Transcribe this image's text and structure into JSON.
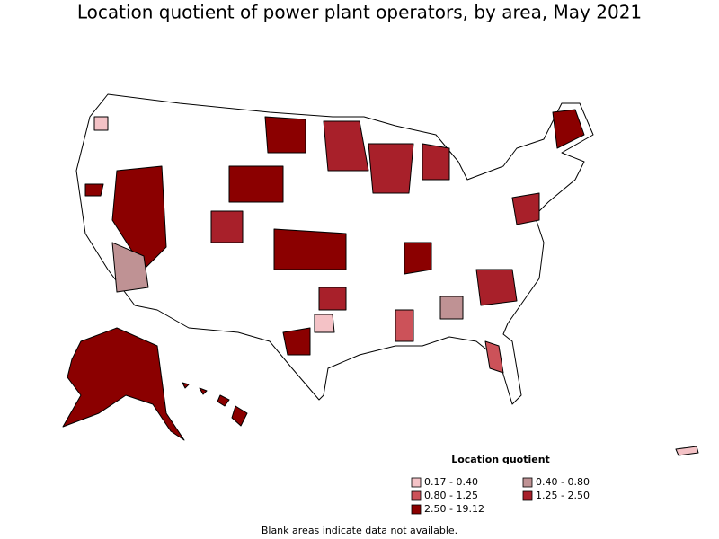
{
  "title": "Location quotient of power plant operators, by area, May 2021",
  "legend": {
    "title": "Location quotient",
    "items": [
      {
        "label": "0.17 - 0.40",
        "color": "#f4c2c6"
      },
      {
        "label": "0.40 - 0.80",
        "color": "#bf9294"
      },
      {
        "label": "0.80 - 1.25",
        "color": "#cc5259"
      },
      {
        "label": "1.25 - 2.50",
        "color": "#a8202a"
      },
      {
        "label": "2.50 - 19.12",
        "color": "#8b0000"
      }
    ]
  },
  "note": "Blank areas indicate data not available."
}
